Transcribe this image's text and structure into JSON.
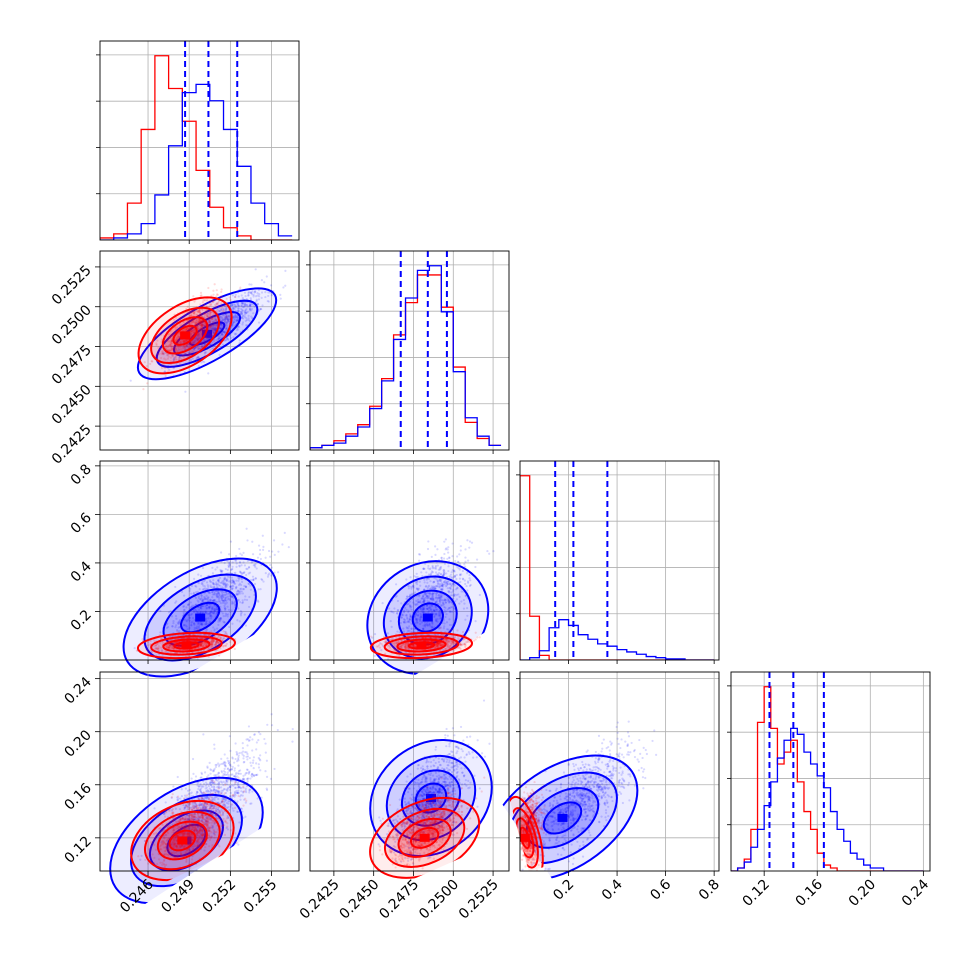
{
  "chart_data": {
    "type": "corner",
    "title": "",
    "colors": {
      "series_a": "#0000ff",
      "series_b": "#ff0000",
      "grid": "#b0b0b0",
      "quantile_line": "#0000ff"
    },
    "grid": true,
    "series": [
      {
        "color": "#0000ff"
      },
      {
        "color": "#ff0000"
      }
    ],
    "parameters": [
      {
        "axis_range": [
          0.2425,
          0.257
        ],
        "ticks": [
          0.246,
          0.249,
          0.252,
          0.255
        ],
        "tick_labels": [
          "0.246",
          "0.249",
          "0.252",
          "0.255"
        ],
        "quantiles": [
          0.2487,
          0.2504,
          0.2525
        ],
        "bins": [
          0.2425,
          0.2435,
          0.2445,
          0.2455,
          0.2465,
          0.2475,
          0.2485,
          0.2495,
          0.2505,
          0.2515,
          0.2525,
          0.2535,
          0.2545,
          0.2555,
          0.2565
        ],
        "hist": {
          "series_a": [
            0,
            1,
            3,
            8,
            22,
            46,
            72,
            76,
            68,
            54,
            36,
            18,
            8,
            2
          ],
          "series_b": [
            1,
            3,
            18,
            54,
            90,
            74,
            58,
            34,
            16,
            6,
            2,
            0,
            0,
            0
          ]
        }
      },
      {
        "axis_range": [
          0.241,
          0.2535
        ],
        "ticks": [
          0.2425,
          0.245,
          0.2475,
          0.25,
          0.2525
        ],
        "tick_labels": [
          "0.2425",
          "0.2450",
          "0.2475",
          "0.2500",
          "0.2525"
        ],
        "quantiles": [
          0.2467,
          0.2484,
          0.2496
        ],
        "bins": [
          0.241,
          0.24175,
          0.2425,
          0.24325,
          0.244,
          0.24475,
          0.2455,
          0.24625,
          0.247,
          0.24775,
          0.2485,
          0.24925,
          0.25,
          0.25075,
          0.2515,
          0.25225,
          0.253
        ],
        "hist": {
          "series_a": [
            1,
            2,
            3,
            6,
            10,
            18,
            30,
            48,
            66,
            78,
            80,
            60,
            34,
            14,
            6,
            2
          ],
          "series_b": [
            1,
            2,
            4,
            7,
            11,
            19,
            31,
            50,
            64,
            76,
            76,
            62,
            36,
            12,
            5,
            2
          ]
        }
      },
      {
        "axis_range": [
          0.0,
          0.82
        ],
        "ticks": [
          0.2,
          0.4,
          0.6,
          0.8
        ],
        "tick_labels": [
          "0.2",
          "0.4",
          "0.6",
          "0.8"
        ],
        "quantiles": [
          0.145,
          0.22,
          0.36
        ],
        "bins": [
          0.0,
          0.04,
          0.08,
          0.12,
          0.16,
          0.2,
          0.24,
          0.28,
          0.32,
          0.36,
          0.4,
          0.44,
          0.48,
          0.52,
          0.56,
          0.6,
          0.64,
          0.68,
          0.72,
          0.76,
          0.8
        ],
        "hist": {
          "series_a": [
            0,
            2,
            8,
            28,
            35,
            30,
            22,
            18,
            14,
            12,
            9,
            7,
            5,
            3,
            2,
            1,
            1,
            0,
            0,
            0
          ],
          "series_b": [
            160,
            38,
            4,
            0,
            0,
            0,
            0,
            0,
            0,
            0,
            0,
            0,
            0,
            0,
            0,
            0,
            0,
            0,
            0,
            0
          ]
        }
      },
      {
        "axis_range": [
          0.095,
          0.245
        ],
        "ticks": [
          0.12,
          0.16,
          0.2,
          0.24
        ],
        "tick_labels": [
          "0.12",
          "0.16",
          "0.20",
          "0.24"
        ],
        "quantiles": [
          0.124,
          0.142,
          0.165
        ],
        "bins": [
          0.095,
          0.1,
          0.105,
          0.11,
          0.115,
          0.12,
          0.125,
          0.13,
          0.135,
          0.14,
          0.145,
          0.15,
          0.155,
          0.16,
          0.165,
          0.17,
          0.175,
          0.18,
          0.185,
          0.19,
          0.195,
          0.2,
          0.205,
          0.21,
          0.215,
          0.22,
          0.225,
          0.23,
          0.235,
          0.24
        ],
        "hist": {
          "series_a": [
            0,
            1,
            3,
            8,
            14,
            22,
            30,
            38,
            44,
            48,
            46,
            40,
            36,
            32,
            28,
            20,
            14,
            10,
            6,
            4,
            2,
            1,
            1,
            0,
            0,
            0,
            0,
            0,
            0
          ],
          "series_b": [
            0,
            1,
            4,
            14,
            50,
            62,
            48,
            36,
            40,
            44,
            30,
            20,
            14,
            6,
            2,
            1,
            0,
            0,
            0,
            0,
            0,
            0,
            0,
            0,
            0,
            0,
            0,
            0,
            0
          ]
        }
      }
    ],
    "pairs": [
      {
        "row": 1,
        "col": 0,
        "series_a": {
          "mean": [
            0.2512,
            0.2487
          ],
          "sd": [
            0.0016,
            0.0011
          ],
          "rho": 0.82,
          "peak": [
            0.2503,
            0.2483
          ]
        },
        "series_b": {
          "mean": [
            0.2492,
            0.2486
          ],
          "sd": [
            0.0011,
            0.001
          ],
          "rho": 0.72,
          "peak": [
            0.2487,
            0.2482
          ]
        }
      },
      {
        "row": 2,
        "col": 0,
        "series_a": {
          "mean": [
            0.2508,
            0.24
          ],
          "sd": [
            0.0018,
            0.1
          ],
          "rho": 0.7,
          "peak": [
            0.2498,
            0.175
          ]
        },
        "series_b": {
          "mean": [
            0.2492,
            0.07
          ],
          "sd": [
            0.0012,
            0.018
          ],
          "rho": 0.25,
          "peak": [
            0.2488,
            0.06
          ]
        }
      },
      {
        "row": 2,
        "col": 1,
        "series_a": {
          "mean": [
            0.2486,
            0.24
          ],
          "sd": [
            0.0012,
            0.1
          ],
          "rho": 0.55,
          "peak": [
            0.2484,
            0.175
          ]
        },
        "series_b": {
          "mean": [
            0.2484,
            0.07
          ],
          "sd": [
            0.0011,
            0.018
          ],
          "rho": 0.2,
          "peak": [
            0.248,
            0.06
          ]
        }
      },
      {
        "row": 3,
        "col": 0,
        "series_a": {
          "mean": [
            0.2508,
            0.15
          ],
          "sd": [
            0.0018,
            0.02
          ],
          "rho": 0.7,
          "peak": [
            0.2488,
            0.118
          ]
        },
        "series_b": {
          "mean": [
            0.2492,
            0.127
          ],
          "sd": [
            0.0012,
            0.012
          ],
          "rho": 0.55,
          "peak": [
            0.2485,
            0.118
          ]
        }
      },
      {
        "row": 3,
        "col": 1,
        "series_a": {
          "mean": [
            0.2486,
            0.15
          ],
          "sd": [
            0.0012,
            0.02
          ],
          "rho": 0.65,
          "peak": [
            0.2486,
            0.15
          ]
        },
        "series_b": {
          "mean": [
            0.2484,
            0.127
          ],
          "sd": [
            0.0011,
            0.012
          ],
          "rho": 0.55,
          "peak": [
            0.2482,
            0.12
          ]
        }
      },
      {
        "row": 3,
        "col": 2,
        "series_a": {
          "mean": [
            0.26,
            0.15
          ],
          "sd": [
            0.1,
            0.02
          ],
          "rho": 0.7,
          "peak": [
            0.175,
            0.135
          ]
        },
        "series_b": {
          "mean": [
            0.04,
            0.127
          ],
          "sd": [
            0.022,
            0.012
          ],
          "rho": 0.1,
          "peak": [
            0.02,
            0.12
          ]
        }
      }
    ]
  }
}
